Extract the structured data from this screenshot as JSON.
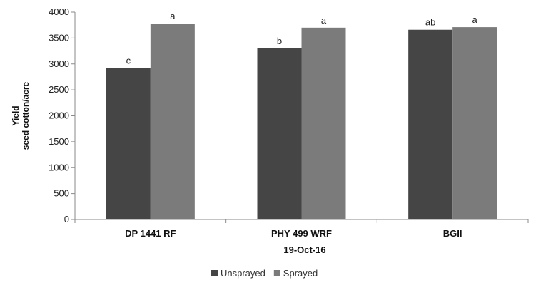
{
  "chart_data": {
    "type": "bar",
    "categories": [
      "DP 1441 RF",
      "PHY 499 WRF",
      "BGII"
    ],
    "series": [
      {
        "name": "Unsprayed",
        "color": "#454545",
        "values": [
          2920,
          3300,
          3660
        ],
        "labels": [
          "c",
          "b",
          "ab"
        ]
      },
      {
        "name": "Sprayed",
        "color": "#7b7b7b",
        "values": [
          3780,
          3700,
          3710
        ],
        "labels": [
          "a",
          "a",
          "a"
        ]
      }
    ],
    "xlabel": "19-Oct-16",
    "ylabel": [
      "Yield",
      "seed cotton/acre"
    ],
    "ylim": [
      0,
      4000
    ],
    "yticks": [
      0,
      500,
      1000,
      1500,
      2000,
      2500,
      3000,
      3500,
      4000
    ],
    "grid": false,
    "legend_position": "bottom"
  }
}
